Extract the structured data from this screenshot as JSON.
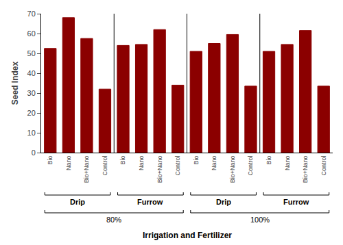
{
  "chart_data": {
    "type": "bar",
    "ylabel": "Seed Index",
    "xlabel": "Irrigation and Fertilizer",
    "categories": [
      "Bio",
      "Nano",
      "Bio+Nano",
      "Control",
      "Bio",
      "Nano",
      "Bio+Nano",
      "Control",
      "Bio",
      "Nano",
      "Bio+Nano",
      "Control",
      "Bio",
      "Nano",
      "Bio+Nano",
      "Control"
    ],
    "values": [
      52.5,
      68,
      57.5,
      32,
      54,
      54.5,
      62,
      34,
      51,
      55,
      59.5,
      33.5,
      51,
      54.5,
      61.5,
      33.5
    ],
    "color": "#8B0000",
    "ylim": [
      0,
      70
    ],
    "yticks": [
      0,
      10,
      20,
      30,
      40,
      50,
      60,
      70
    ],
    "grid": false,
    "groups": [
      {
        "label": "Drip",
        "start": 0,
        "end": 3
      },
      {
        "label": "Furrow",
        "start": 4,
        "end": 7
      },
      {
        "label": "Drip",
        "start": 8,
        "end": 11
      },
      {
        "label": "Furrow",
        "start": 12,
        "end": 15
      }
    ],
    "supergroups": [
      {
        "label": "80%",
        "start": 0,
        "end": 7
      },
      {
        "label": "100%",
        "start": 8,
        "end": 15
      }
    ]
  }
}
